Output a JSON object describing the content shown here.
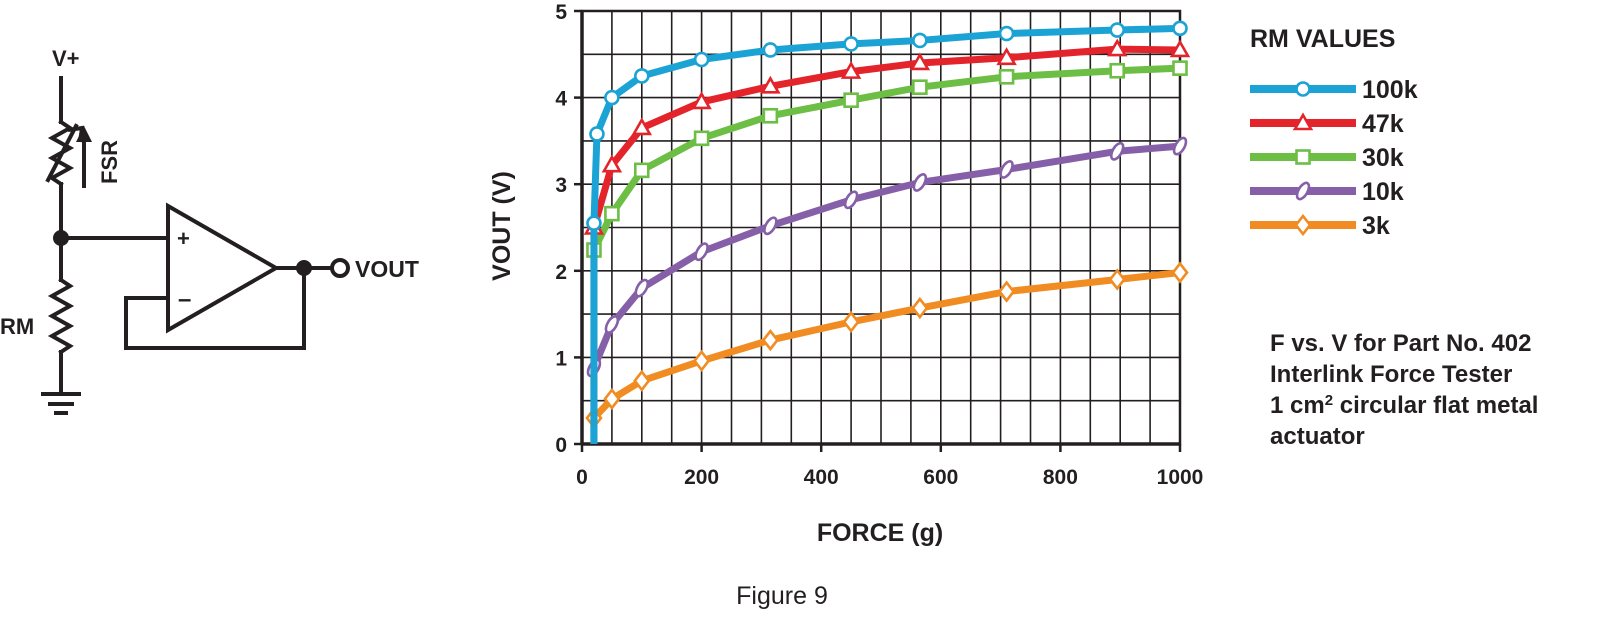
{
  "circuit": {
    "supply_label": "V+",
    "sensor_label": "FSR",
    "resistor_label": "RM",
    "plus_label": "+",
    "minus_label": "–",
    "output_label": "VOUT"
  },
  "figure_caption": "Figure 9",
  "note": {
    "line1": "F vs. V for Part No. 402",
    "line2": "Interlink Force Tester",
    "line3_pre": "1 cm",
    "line3_sup": "2",
    "line3_post": " circular flat metal",
    "line4": "actuator"
  },
  "chart_data": {
    "type": "line",
    "xlabel": "FORCE (g)",
    "ylabel": "VOUT (V)",
    "xlim": [
      0,
      1000
    ],
    "ylim": [
      0,
      5
    ],
    "xticks": [
      "0",
      "200",
      "400",
      "600",
      "800",
      "1000"
    ],
    "yticks": [
      "0",
      "1",
      "2",
      "3",
      "4",
      "5"
    ],
    "grid": true,
    "legend_title": "RM VALUES",
    "legend_position": "right",
    "series": [
      {
        "name": "100k",
        "color": "#1ba3d5",
        "marker": "circle",
        "points": [
          [
            20,
            0.0
          ],
          [
            20,
            2.55
          ],
          [
            25,
            3.58
          ],
          [
            50,
            4.0
          ],
          [
            100,
            4.25
          ],
          [
            200,
            4.44
          ],
          [
            315,
            4.55
          ],
          [
            450,
            4.62
          ],
          [
            565,
            4.66
          ],
          [
            710,
            4.74
          ],
          [
            895,
            4.78
          ],
          [
            1000,
            4.8
          ]
        ]
      },
      {
        "name": "47k",
        "color": "#e3242b",
        "marker": "triangle",
        "points": [
          [
            20,
            0.0
          ],
          [
            20,
            2.5
          ],
          [
            50,
            3.22
          ],
          [
            100,
            3.65
          ],
          [
            200,
            3.95
          ],
          [
            315,
            4.13
          ],
          [
            450,
            4.3
          ],
          [
            565,
            4.4
          ],
          [
            710,
            4.46
          ],
          [
            895,
            4.56
          ],
          [
            1000,
            4.55
          ]
        ]
      },
      {
        "name": "30k",
        "color": "#6cbe45",
        "marker": "square",
        "points": [
          [
            20,
            0.0
          ],
          [
            20,
            2.24
          ],
          [
            50,
            2.66
          ],
          [
            100,
            3.16
          ],
          [
            200,
            3.53
          ],
          [
            315,
            3.79
          ],
          [
            450,
            3.97
          ],
          [
            565,
            4.12
          ],
          [
            710,
            4.24
          ],
          [
            895,
            4.31
          ],
          [
            1000,
            4.34
          ]
        ]
      },
      {
        "name": "10k",
        "color": "#8560a8",
        "marker": "ellipse",
        "points": [
          [
            20,
            0.0
          ],
          [
            20,
            0.88
          ],
          [
            50,
            1.38
          ],
          [
            100,
            1.8
          ],
          [
            200,
            2.22
          ],
          [
            315,
            2.52
          ],
          [
            450,
            2.82
          ],
          [
            565,
            3.02
          ],
          [
            710,
            3.17
          ],
          [
            895,
            3.38
          ],
          [
            1000,
            3.44
          ]
        ]
      },
      {
        "name": "3k",
        "color": "#f08c21",
        "marker": "diamond",
        "points": [
          [
            20,
            0.0
          ],
          [
            20,
            0.3
          ],
          [
            50,
            0.52
          ],
          [
            100,
            0.73
          ],
          [
            200,
            0.96
          ],
          [
            315,
            1.2
          ],
          [
            450,
            1.41
          ],
          [
            565,
            1.57
          ],
          [
            710,
            1.76
          ],
          [
            895,
            1.9
          ],
          [
            1000,
            1.98
          ]
        ]
      }
    ]
  }
}
